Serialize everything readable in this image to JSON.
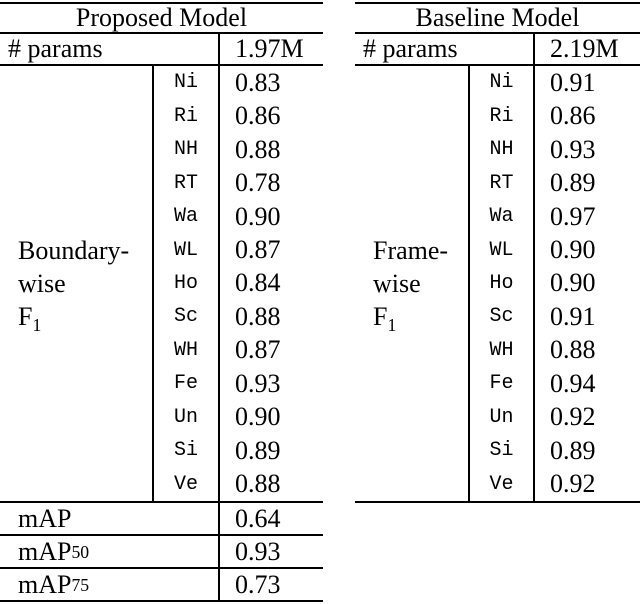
{
  "colors": {
    "text": "#000000",
    "background": "#ffffff",
    "rule": "#000000"
  },
  "tables": {
    "left": {
      "title": "Proposed Model",
      "params_label": "# params",
      "params_value": "1.97M",
      "group_label": {
        "line1": "Boundary-",
        "line2": "wise",
        "line3_main": "F",
        "line3_sub": "1"
      },
      "rows": [
        {
          "key": "Ni",
          "value": "0.83"
        },
        {
          "key": "Ri",
          "value": "0.86"
        },
        {
          "key": "NH",
          "value": "0.88"
        },
        {
          "key": "RT",
          "value": "0.78"
        },
        {
          "key": "Wa",
          "value": "0.90"
        },
        {
          "key": "WL",
          "value": "0.87"
        },
        {
          "key": "Ho",
          "value": "0.84"
        },
        {
          "key": "Sc",
          "value": "0.88"
        },
        {
          "key": "WH",
          "value": "0.87"
        },
        {
          "key": "Fe",
          "value": "0.93"
        },
        {
          "key": "Un",
          "value": "0.90"
        },
        {
          "key": "Si",
          "value": "0.89"
        },
        {
          "key": "Ve",
          "value": "0.88"
        }
      ],
      "map_rows": [
        {
          "label": "mAP",
          "sub": "",
          "value": "0.64"
        },
        {
          "label": "mAP",
          "sub": "50",
          "value": "0.93"
        },
        {
          "label": "mAP",
          "sub": "75",
          "value": "0.73"
        }
      ]
    },
    "right": {
      "title": "Baseline Model",
      "params_label": "# params",
      "params_value": "2.19M",
      "group_label": {
        "line1": "Frame-",
        "line2": "wise",
        "line3_main": "F",
        "line3_sub": "1"
      },
      "rows": [
        {
          "key": "Ni",
          "value": "0.91"
        },
        {
          "key": "Ri",
          "value": "0.86"
        },
        {
          "key": "NH",
          "value": "0.93"
        },
        {
          "key": "RT",
          "value": "0.89"
        },
        {
          "key": "Wa",
          "value": "0.97"
        },
        {
          "key": "WL",
          "value": "0.90"
        },
        {
          "key": "Ho",
          "value": "0.90"
        },
        {
          "key": "Sc",
          "value": "0.91"
        },
        {
          "key": "WH",
          "value": "0.88"
        },
        {
          "key": "Fe",
          "value": "0.94"
        },
        {
          "key": "Un",
          "value": "0.92"
        },
        {
          "key": "Si",
          "value": "0.89"
        },
        {
          "key": "Ve",
          "value": "0.92"
        }
      ]
    }
  }
}
